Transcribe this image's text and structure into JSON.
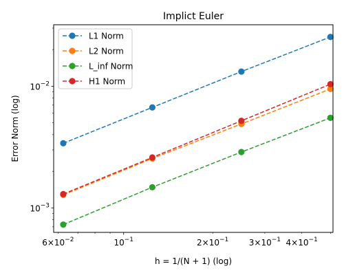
{
  "chart_data": {
    "type": "line",
    "title": "Implict Euler",
    "xlabel": "h = 1/(N + 1) (log)",
    "ylabel": "Error Norm (log)",
    "xscale": "log",
    "yscale": "log",
    "xlim": [
      0.058,
      0.51
    ],
    "ylim": [
      0.00063,
      0.032
    ],
    "grid": false,
    "legend_position": "top-left",
    "x": [
      0.0625,
      0.125,
      0.25,
      0.5
    ],
    "series": [
      {
        "name": "L1 Norm",
        "color": "#1f77b4",
        "values": [
          0.0034,
          0.0067,
          0.0132,
          0.0254
        ]
      },
      {
        "name": "L2 Norm",
        "color": "#ff7f0e",
        "values": [
          0.00128,
          0.00255,
          0.0049,
          0.0095
        ]
      },
      {
        "name": "L_inf Norm",
        "color": "#2ca02c",
        "values": [
          0.00073,
          0.00148,
          0.00288,
          0.0055
        ]
      },
      {
        "name": "H1 Norm",
        "color": "#d62728",
        "values": [
          0.0013,
          0.0026,
          0.0052,
          0.0104
        ]
      }
    ],
    "x_major_ticks": [
      {
        "value": 0.1,
        "base": "10",
        "exp": "−1"
      }
    ],
    "x_minor_ticks": [
      {
        "value": 0.06,
        "mant": "6",
        "base": "10",
        "exp": "−2"
      },
      {
        "value": 0.2,
        "mant": "2",
        "base": "10",
        "exp": "−1"
      },
      {
        "value": 0.3,
        "mant": "3",
        "base": "10",
        "exp": "−1"
      },
      {
        "value": 0.4,
        "mant": "4",
        "base": "10",
        "exp": "−1"
      }
    ],
    "y_major_ticks": [
      {
        "value": 0.001,
        "base": "10",
        "exp": "−3"
      },
      {
        "value": 0.01,
        "base": "10",
        "exp": "−2"
      }
    ]
  }
}
